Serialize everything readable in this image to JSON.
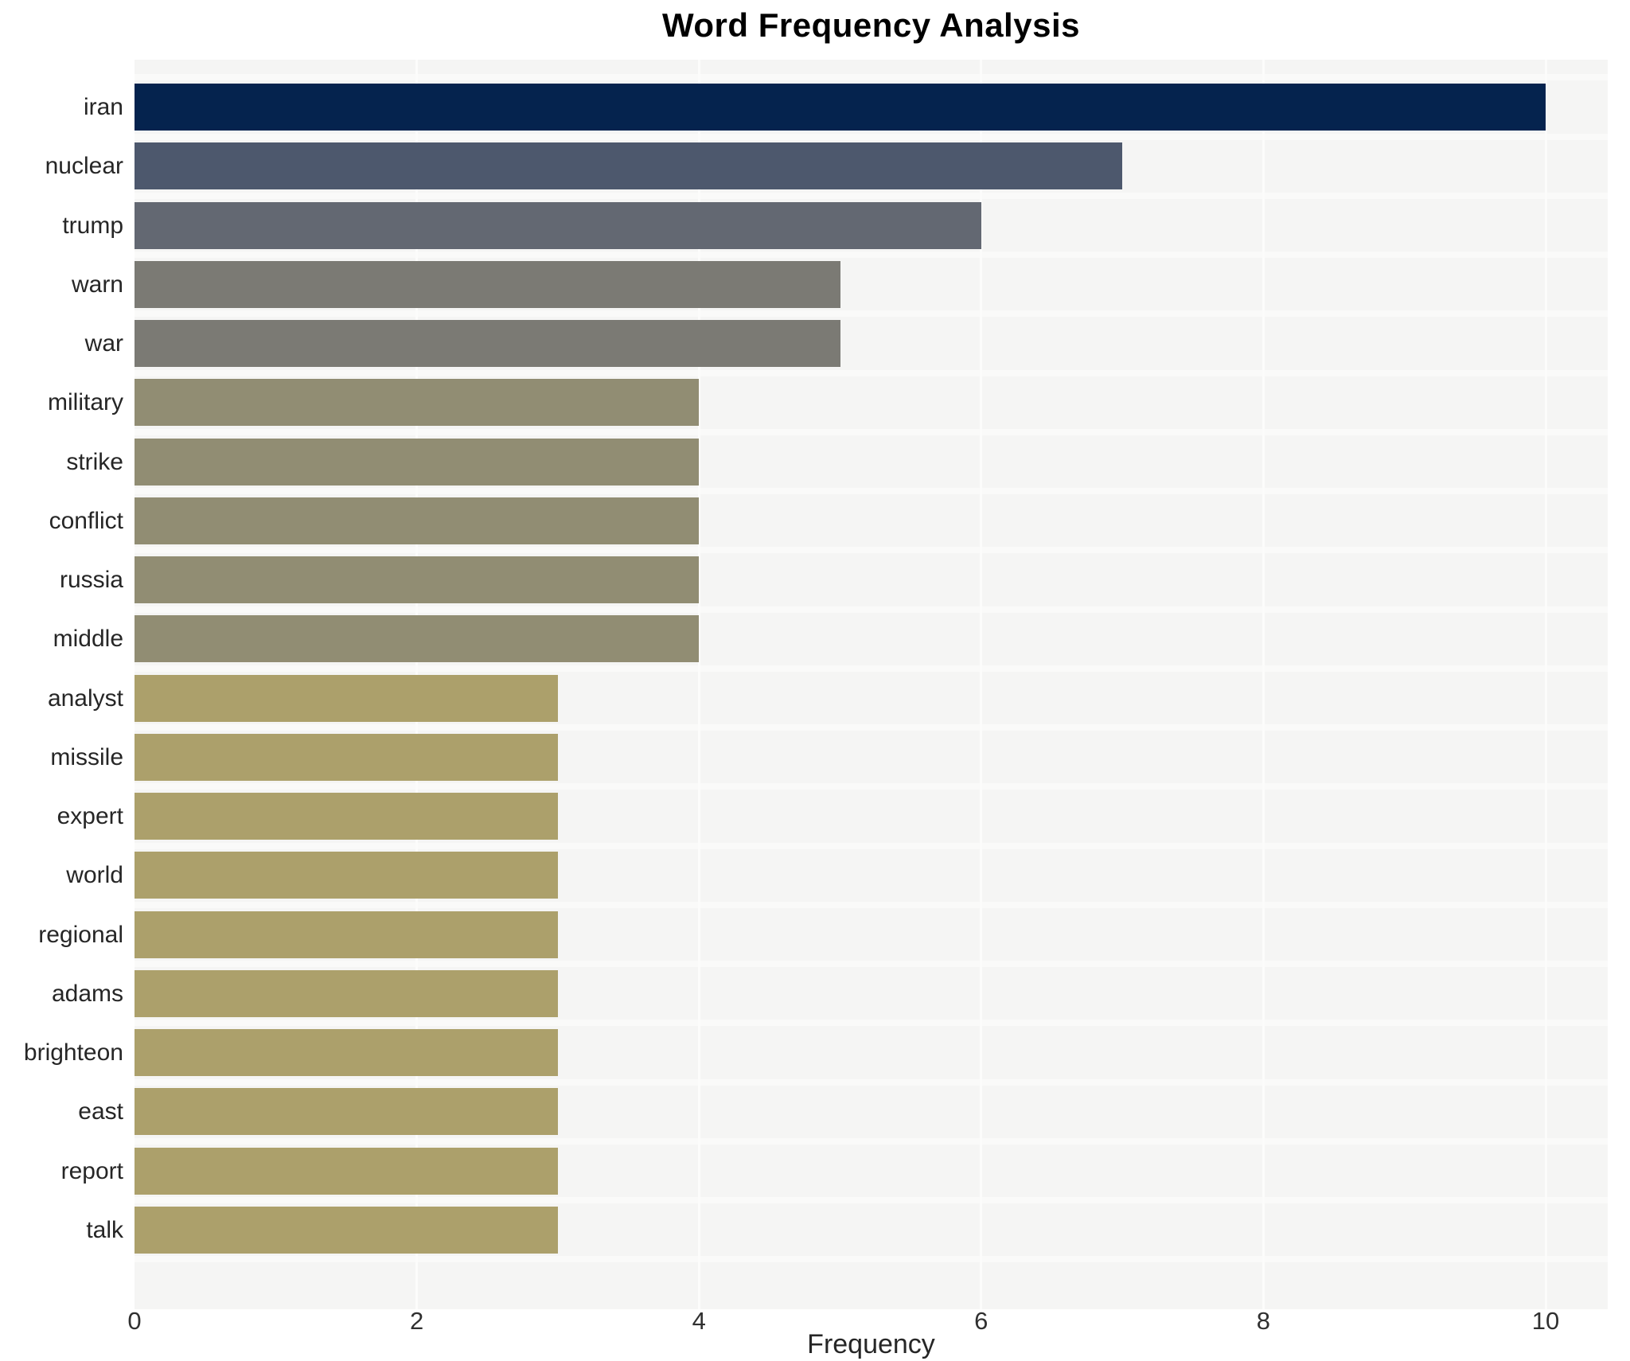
{
  "title": "Word Frequency Analysis",
  "chart_data": {
    "type": "bar",
    "orientation": "horizontal",
    "title": "Word Frequency Analysis",
    "xlabel": "Frequency",
    "ylabel": "",
    "categories": [
      "iran",
      "nuclear",
      "trump",
      "warn",
      "war",
      "military",
      "strike",
      "conflict",
      "russia",
      "middle",
      "analyst",
      "missile",
      "expert",
      "world",
      "regional",
      "adams",
      "brighteon",
      "east",
      "report",
      "talk"
    ],
    "values": [
      10,
      7,
      6,
      5,
      5,
      4,
      4,
      4,
      4,
      4,
      3,
      3,
      3,
      3,
      3,
      3,
      3,
      3,
      3,
      3
    ],
    "bar_colors": [
      "#05234e",
      "#4d586d",
      "#636872",
      "#7b7a74",
      "#7b7a74",
      "#918d73",
      "#918d73",
      "#918d73",
      "#918d73",
      "#918d73",
      "#aca06b",
      "#aca06b",
      "#aca06b",
      "#aca06b",
      "#aca06b",
      "#aca06b",
      "#aca06b",
      "#aca06b",
      "#aca06b",
      "#aca06b"
    ],
    "xlim": [
      0,
      10.44
    ],
    "xticks": [
      0,
      2,
      4,
      6,
      8,
      10
    ],
    "grid": true,
    "legend": false,
    "colors": {
      "panel_bg": "#f5f5f4",
      "grid_line": "#fcfcfb",
      "row_stripe": "#fafaf9",
      "text": "#262626"
    }
  }
}
